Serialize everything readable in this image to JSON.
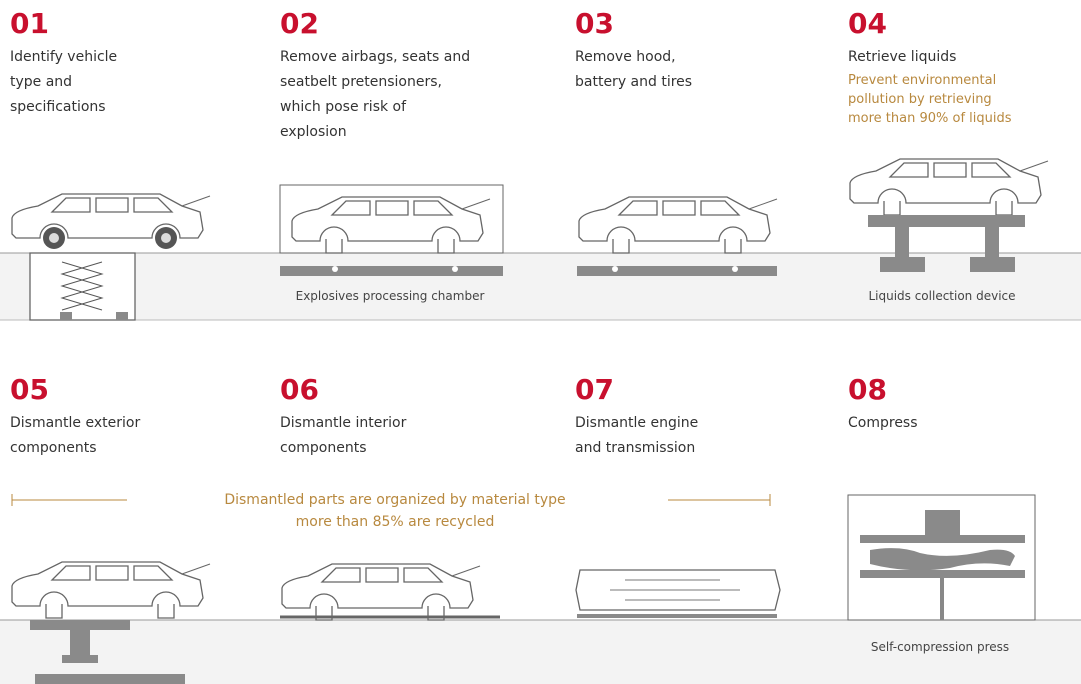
{
  "steps": [
    {
      "number": "01",
      "lines": [
        "Identify vehicle",
        "type and",
        "specifications"
      ]
    },
    {
      "number": "02",
      "lines": [
        "Remove airbags, seats and",
        "seatbelt pretensioners,",
        "which pose risk of",
        "explosion"
      ],
      "equipment": "Explosives processing chamber"
    },
    {
      "number": "03",
      "lines": [
        "Remove hood,",
        "battery and tires"
      ]
    },
    {
      "number": "04",
      "lines": [
        "Retrieve liquids"
      ],
      "note": [
        "Prevent environmental",
        "pollution by retrieving",
        "more than 90% of liquids"
      ],
      "equipment": "Liquids collection device"
    },
    {
      "number": "05",
      "lines": [
        "Dismantle exterior",
        "components"
      ]
    },
    {
      "number": "06",
      "lines": [
        "Dismantle interior",
        "components"
      ]
    },
    {
      "number": "07",
      "lines": [
        "Dismantle engine",
        "and transmission"
      ]
    },
    {
      "number": "08",
      "lines": [
        "Compress"
      ],
      "equipment": "Self-compression press"
    }
  ],
  "banner": [
    "Dismantled parts are organized by material type",
    "more than 85% are recycled"
  ]
}
